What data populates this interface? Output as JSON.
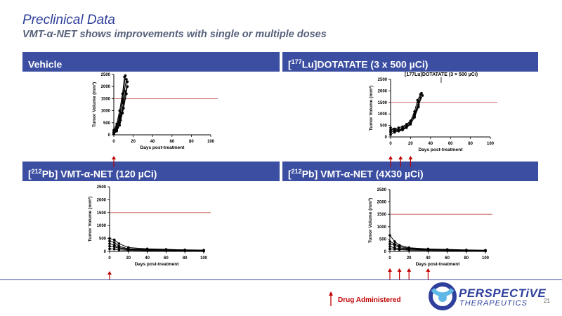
{
  "slide": {
    "title": "Preclinical Data",
    "subtitle": "VMT-α-NET shows improvements with single or multiple doses",
    "page_number": "21"
  },
  "panels": [
    {
      "header_parts": [
        "",
        "",
        "Vehicle"
      ],
      "inner_label": "",
      "arrows": [
        0
      ]
    },
    {
      "header_parts": [
        "[",
        "177",
        "Lu]DOTATATE (3 x 500 µCi)"
      ],
      "inner_label": "[177Lu]DOTATATE (3 × 500 µCi)",
      "arrows": [
        0,
        10,
        20
      ]
    },
    {
      "header_parts": [
        "[",
        "212",
        "Pb] VMT-α-NET (120 µCi)"
      ],
      "inner_label": "",
      "arrows": [
        0
      ]
    },
    {
      "header_parts": [
        "[",
        "212",
        "Pb] VMT-α-NET (4X30 µCi)"
      ],
      "inner_label": "",
      "arrows": [
        0,
        10,
        20,
        40
      ]
    }
  ],
  "chart_common": {
    "ylabel": "Tumor Volume (mm³)",
    "xlabel": "Days post-treatment",
    "xticks": [
      0,
      20,
      40,
      60,
      80,
      100
    ],
    "yticks": [
      0,
      500,
      1000,
      1500,
      2000,
      2500
    ],
    "xlim": [
      0,
      100
    ],
    "ylim": [
      0,
      2500
    ],
    "threshold": 1500,
    "threshold_color": "#c0504d"
  },
  "chart_data": [
    {
      "type": "line",
      "title": "Vehicle",
      "xlabel": "Days post-treatment",
      "ylabel": "Tumor Volume (mm³)",
      "xlim": [
        0,
        100
      ],
      "ylim": [
        0,
        2500
      ],
      "series": [
        {
          "x": [
            0,
            3,
            6,
            9,
            12
          ],
          "y": [
            150,
            350,
            800,
            1500,
            2450
          ]
        },
        {
          "x": [
            0,
            3,
            6,
            9,
            13
          ],
          "y": [
            100,
            300,
            700,
            1400,
            2300
          ]
        },
        {
          "x": [
            0,
            3,
            6,
            9,
            11
          ],
          "y": [
            200,
            450,
            1000,
            1700,
            2400
          ]
        },
        {
          "x": [
            0,
            3,
            6,
            10,
            14
          ],
          "y": [
            50,
            200,
            500,
            1100,
            2000
          ]
        },
        {
          "x": [
            0,
            3,
            7,
            10,
            14
          ],
          "y": [
            120,
            250,
            600,
            1300,
            2200
          ]
        },
        {
          "x": [
            0,
            4,
            8,
            12
          ],
          "y": [
            80,
            300,
            900,
            1800
          ]
        },
        {
          "x": [
            0,
            3,
            6,
            9,
            13
          ],
          "y": [
            30,
            150,
            400,
            900,
            1700
          ]
        }
      ]
    },
    {
      "type": "line",
      "title": "[177Lu]DOTATATE (3 × 500 µCi)",
      "xlabel": "Days post-treatment",
      "ylabel": "Tumor Volume (mm³)",
      "xlim": [
        0,
        100
      ],
      "ylim": [
        0,
        2500
      ],
      "series": [
        {
          "x": [
            0,
            4,
            8,
            12,
            16,
            20,
            24,
            28,
            32
          ],
          "y": [
            300,
            350,
            300,
            400,
            500,
            650,
            900,
            1400,
            1800
          ]
        },
        {
          "x": [
            0,
            4,
            8,
            12,
            16,
            20,
            24,
            28,
            31
          ],
          "y": [
            200,
            250,
            300,
            350,
            450,
            600,
            1000,
            1500,
            1900
          ]
        },
        {
          "x": [
            0,
            4,
            8,
            12,
            16,
            20,
            24,
            27,
            30
          ],
          "y": [
            400,
            350,
            400,
            450,
            550,
            700,
            1100,
            1600,
            1850
          ]
        },
        {
          "x": [
            0,
            4,
            8,
            12,
            16,
            20,
            24,
            28,
            30
          ],
          "y": [
            100,
            200,
            250,
            300,
            400,
            550,
            850,
            1300,
            1700
          ]
        },
        {
          "x": [
            0,
            4,
            8,
            12,
            16,
            20,
            24,
            28
          ],
          "y": [
            250,
            300,
            280,
            320,
            420,
            620,
            950,
            1500
          ]
        }
      ]
    },
    {
      "type": "line",
      "title": "[212Pb] VMT-α-NET (120 µCi)",
      "xlabel": "Days post-treatment",
      "ylabel": "Tumor Volume (mm³)",
      "xlim": [
        0,
        100
      ],
      "ylim": [
        0,
        2500
      ],
      "series": [
        {
          "x": [
            0,
            5,
            10,
            20,
            40,
            60,
            80,
            100
          ],
          "y": [
            500,
            450,
            300,
            150,
            100,
            80,
            60,
            50
          ]
        },
        {
          "x": [
            0,
            5,
            10,
            20,
            40,
            60,
            80,
            100
          ],
          "y": [
            400,
            350,
            200,
            100,
            80,
            60,
            50,
            40
          ]
        },
        {
          "x": [
            0,
            5,
            10,
            20,
            40,
            60,
            80,
            100
          ],
          "y": [
            300,
            250,
            150,
            80,
            60,
            50,
            40,
            30
          ]
        },
        {
          "x": [
            0,
            5,
            10,
            20,
            40,
            60,
            80,
            100
          ],
          "y": [
            200,
            180,
            120,
            60,
            50,
            40,
            30,
            20
          ]
        },
        {
          "x": [
            0,
            5,
            10,
            20,
            40,
            60,
            80,
            100
          ],
          "y": [
            100,
            90,
            60,
            40,
            30,
            30,
            20,
            10
          ]
        }
      ]
    },
    {
      "type": "line",
      "title": "[212Pb] VMT-α-NET (4X30 µCi)",
      "xlabel": "Days post-treatment",
      "ylabel": "Tumor Volume (mm³)",
      "xlim": [
        0,
        100
      ],
      "ylim": [
        0,
        2500
      ],
      "series": [
        {
          "x": [
            0,
            5,
            10,
            20,
            40,
            60,
            80,
            100
          ],
          "y": [
            650,
            400,
            250,
            150,
            100,
            80,
            60,
            50
          ]
        },
        {
          "x": [
            0,
            5,
            10,
            20,
            40,
            60,
            80,
            100
          ],
          "y": [
            400,
            300,
            200,
            120,
            90,
            70,
            50,
            40
          ]
        },
        {
          "x": [
            0,
            5,
            10,
            20,
            40,
            60,
            80,
            100
          ],
          "y": [
            300,
            250,
            150,
            100,
            70,
            60,
            40,
            30
          ]
        },
        {
          "x": [
            0,
            5,
            10,
            20,
            40,
            60,
            80,
            100
          ],
          "y": [
            200,
            150,
            100,
            80,
            60,
            50,
            30,
            20
          ]
        },
        {
          "x": [
            0,
            5,
            10,
            20,
            40,
            60,
            80,
            100
          ],
          "y": [
            100,
            90,
            70,
            50,
            40,
            30,
            20,
            10
          ]
        }
      ]
    }
  ],
  "legend": {
    "label": "Drug Administered",
    "arrow_color": "#c00000"
  },
  "logo": {
    "name": "PERSPECTiVE",
    "sub": "THERAPEUTICS",
    "primary": "#2f3f9c",
    "accent": "#5fb8e6"
  }
}
